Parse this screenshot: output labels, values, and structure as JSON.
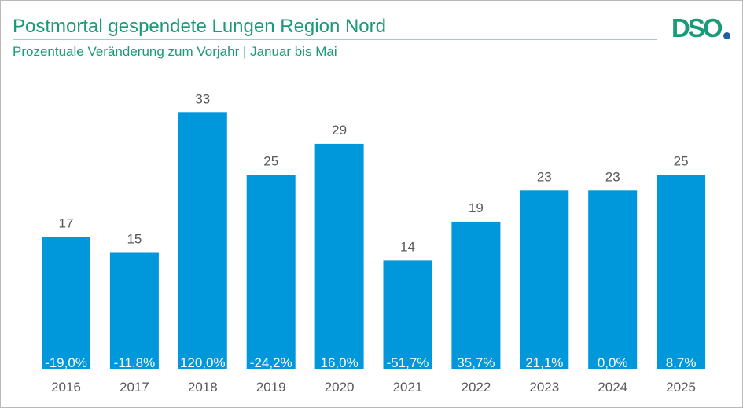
{
  "header": {
    "title": "Postmortal gespendete Lungen Region Nord",
    "subtitle": "Prozentuale Veränderung zum Vorjahr | Januar bis Mai"
  },
  "logo": {
    "text": "DSO"
  },
  "colors": {
    "bar": "#0097db",
    "title": "#1a9a78",
    "value_label": "#595959",
    "change_label": "#ffffff",
    "logo_dot": "#1f5fa8"
  },
  "chart_data": {
    "type": "bar",
    "title": "Postmortal gespendete Lungen Region Nord",
    "subtitle": "Prozentuale Veränderung zum Vorjahr | Januar bis Mai",
    "xlabel": "",
    "ylabel": "",
    "ylim": [
      0,
      35
    ],
    "grid": false,
    "legend": "none",
    "categories": [
      "2016",
      "2017",
      "2018",
      "2019",
      "2020",
      "2021",
      "2022",
      "2023",
      "2024",
      "2025"
    ],
    "values": [
      17,
      15,
      33,
      25,
      29,
      14,
      19,
      23,
      23,
      25
    ],
    "change_labels": [
      "-19,0%",
      "-11,8%",
      "120,0%",
      "-24,2%",
      "16,0%",
      "-51,7%",
      "35,7%",
      "21,1%",
      "0,0%",
      "8,7%"
    ]
  }
}
